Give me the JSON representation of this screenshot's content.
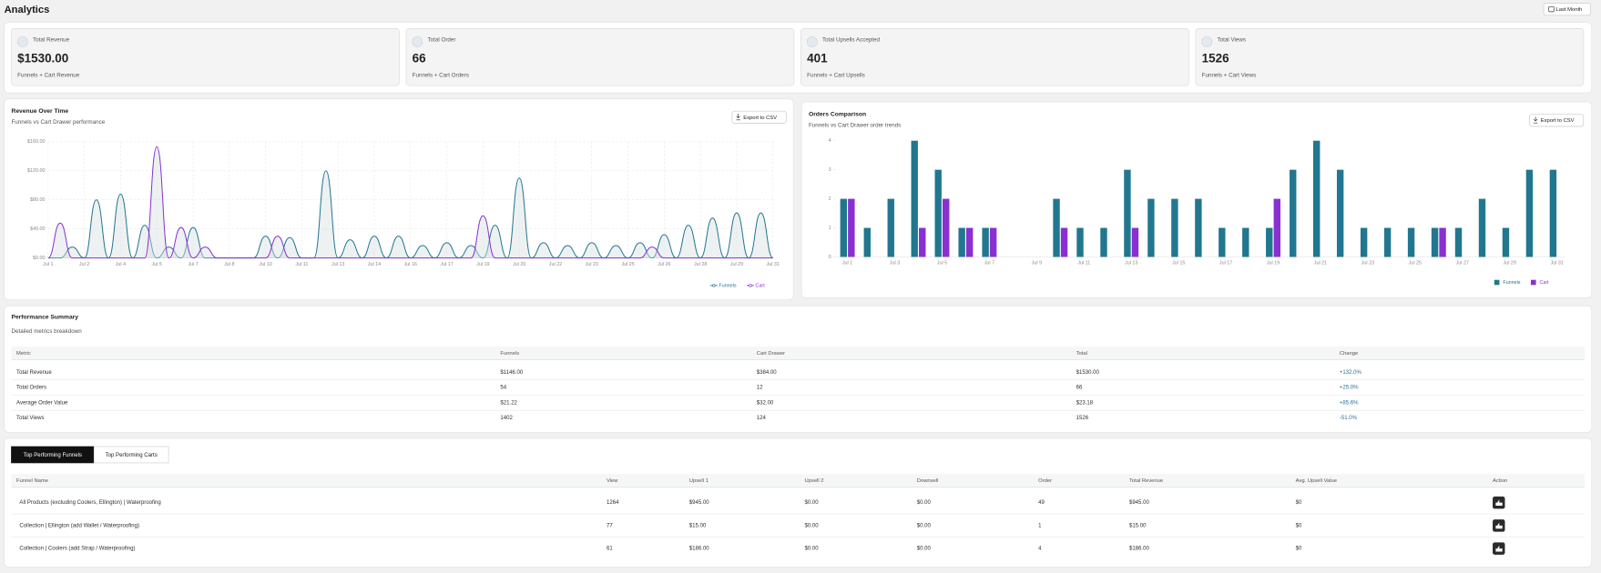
{
  "header": {
    "title": "Analytics",
    "button": "Last Month"
  },
  "stats": [
    {
      "label": "Total Revenue",
      "value": "$1530.00",
      "subtitle": "Funnels + Cart Revenue"
    },
    {
      "label": "Total Order",
      "value": "66",
      "subtitle": "Funnels + Cart Orders"
    },
    {
      "label": "Total Upsells Accepted",
      "value": "401",
      "subtitle": "Funnels + Cart Upsells"
    },
    {
      "label": "Total Views",
      "value": "1526",
      "subtitle": "Funnels + Cart Views"
    }
  ],
  "chart_data": [
    {
      "type": "line",
      "title": "Revenue Over Time",
      "subtitle": "Funnels vs Cart Drawer performance",
      "export_label": "Export to CSV",
      "categories": [
        "Jul 1",
        null,
        null,
        "Jul 2",
        null,
        null,
        "Jul 4",
        null,
        null,
        "Jul 5",
        null,
        null,
        "Jul 7",
        null,
        null,
        "Jul 8",
        null,
        null,
        "Jul 10",
        null,
        null,
        "Jul 11",
        null,
        null,
        "Jul 13",
        null,
        null,
        "Jul 14",
        null,
        null,
        "Jul 16",
        null,
        null,
        "Jul 17",
        null,
        null,
        "Jul 19",
        null,
        null,
        "Jul 20",
        null,
        null,
        "Jul 22",
        null,
        null,
        "Jul 23",
        null,
        null,
        "Jul 25",
        null,
        null,
        "Jul 26",
        null,
        null,
        "Jul 28",
        null,
        null,
        "Jul 29",
        null,
        null,
        "Jul 31"
      ],
      "series": [
        {
          "name": "Funnels",
          "color": "#21778f",
          "values": [
            0,
            0,
            15,
            0,
            80,
            0,
            88,
            0,
            45,
            0,
            15,
            0,
            42,
            0,
            0,
            0,
            0,
            0,
            30,
            0,
            28,
            0,
            0,
            120,
            0,
            25,
            0,
            30,
            0,
            30,
            0,
            17,
            0,
            21,
            0,
            17,
            0,
            45,
            0,
            110,
            0,
            21,
            0,
            17,
            0,
            21,
            0,
            17,
            0,
            21,
            0,
            32,
            0,
            45,
            0,
            55,
            0,
            62,
            0,
            62,
            0
          ]
        },
        {
          "name": "Cart",
          "color": "#8a2fd1",
          "values": [
            0,
            48,
            0,
            0,
            0,
            0,
            0,
            0,
            0,
            153,
            0,
            42,
            0,
            15,
            0,
            0,
            0,
            0,
            0,
            30,
            0,
            0,
            0,
            0,
            0,
            0,
            0,
            0,
            0,
            0,
            0,
            0,
            0,
            0,
            0,
            0,
            58,
            0,
            0,
            0,
            0,
            0,
            0,
            0,
            0,
            0,
            0,
            0,
            0,
            0,
            15,
            0,
            0,
            0,
            0,
            0,
            0,
            0,
            0,
            0,
            0
          ]
        }
      ],
      "ylim": [
        0,
        160
      ],
      "yticks": [
        {
          "value": 0,
          "label": "$0.00"
        },
        {
          "value": 40,
          "label": "$40.00"
        },
        {
          "value": 80,
          "label": "$80.00"
        },
        {
          "value": 120,
          "label": "$120.00"
        },
        {
          "value": 160,
          "label": "$160.00"
        }
      ],
      "grid": true,
      "legend": "bottom-right"
    },
    {
      "type": "bar",
      "title": "Orders Comparison",
      "subtitle": "Funnels vs Cart Drawer order trends",
      "export_label": "Export to CSV",
      "categories": [
        "Jul 1",
        null,
        "Jul 3",
        null,
        "Jul 5",
        null,
        "Jul 7",
        null,
        "Jul 9",
        null,
        "Jul 11",
        null,
        "Jul 13",
        null,
        "Jul 15",
        null,
        "Jul 17",
        null,
        "Jul 19",
        null,
        "Jul 21",
        null,
        "Jul 23",
        null,
        "Jul 25",
        null,
        "Jul 27",
        null,
        "Jul 29",
        null,
        "Jul 31"
      ],
      "series": [
        {
          "name": "Funnels",
          "color": "#21778f",
          "values": [
            2,
            1,
            2,
            4,
            3,
            1,
            1,
            0,
            0,
            2,
            1,
            1,
            3,
            2,
            2,
            2,
            1,
            1,
            1,
            3,
            4,
            3,
            1,
            1,
            1,
            1,
            1,
            2,
            1,
            3,
            3
          ]
        },
        {
          "name": "Cart",
          "color": "#8a2fd1",
          "values": [
            2,
            0,
            0,
            1,
            2,
            1,
            1,
            0,
            0,
            1,
            0,
            0,
            1,
            0,
            0,
            0,
            0,
            0,
            2,
            0,
            0,
            0,
            0,
            0,
            0,
            1,
            0,
            0,
            0,
            0,
            0
          ]
        }
      ],
      "ylim": [
        0,
        4
      ],
      "yticks": [
        0,
        1,
        2,
        3,
        4
      ],
      "grid": false,
      "legend": "bottom-right"
    }
  ],
  "performance": {
    "title": "Performance Summary",
    "subtitle": "Detailed metrics breakdown",
    "columns": [
      "Metric",
      "Funnels",
      "Cart Drawer",
      "Total",
      "Change"
    ],
    "rows": [
      [
        "Total Revenue",
        "$1146.00",
        "$384.00",
        "$1530.00",
        "+132.0%"
      ],
      [
        "Total Orders",
        "54",
        "12",
        "66",
        "+25.0%"
      ],
      [
        "Average Order Value",
        "$21.22",
        "$32.00",
        "$23.18",
        "+85.6%"
      ],
      [
        "Total Views",
        "1402",
        "124",
        "1526",
        "-51.0%"
      ]
    ]
  },
  "top": {
    "tabs": [
      "Top Performing Funnels",
      "Top Performing Carts"
    ],
    "columns": [
      "Funnel Name",
      "View",
      "Upsell 1",
      "Upsell 2",
      "Downsell",
      "Order",
      "Total Revenue",
      "Avg. Upsell Value",
      "Action"
    ],
    "rows": [
      [
        "All Products (excluding Coolers, Ellington) | Waterproofing",
        "1264",
        "$945.00",
        "$0.00",
        "$0.00",
        "49",
        "$945.00",
        "$0"
      ],
      [
        "Collection | Ellington (add Wallet / Waterproofing)",
        "77",
        "$15.00",
        "$0.00",
        "$0.00",
        "1",
        "$15.00",
        "$0"
      ],
      [
        "Collection | Coolers (add Strap / Waterproofing)",
        "61",
        "$186.00",
        "$0.00",
        "$0.00",
        "4",
        "$186.00",
        "$0"
      ]
    ]
  }
}
